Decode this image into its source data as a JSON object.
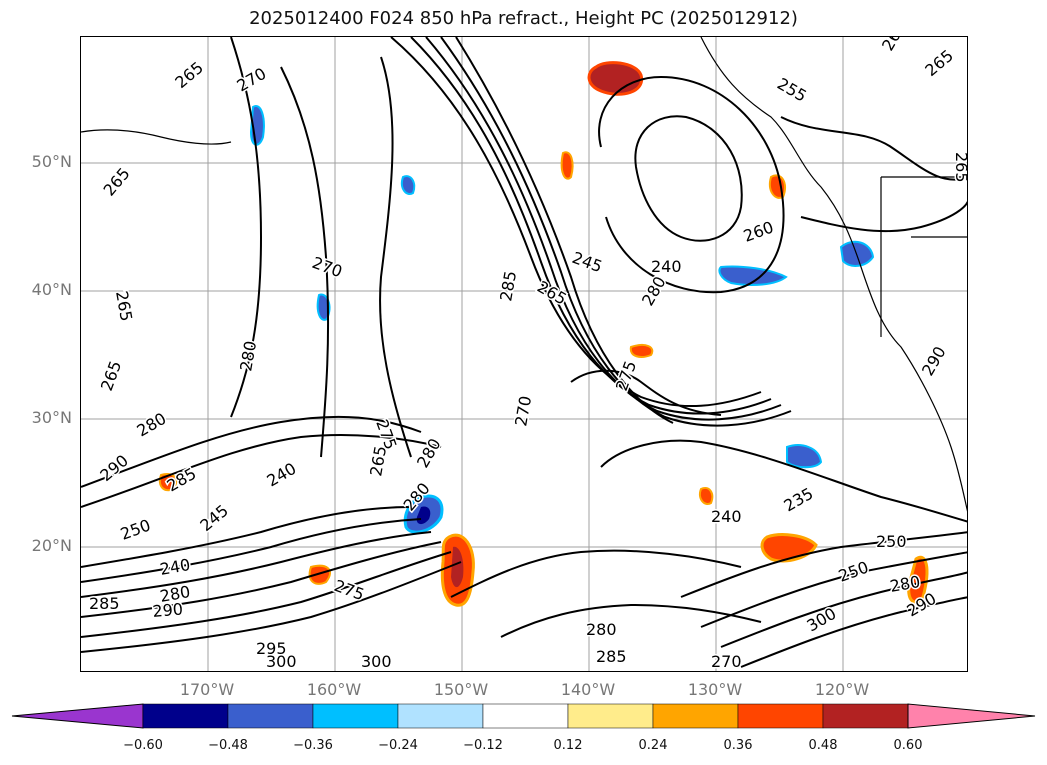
{
  "title": "2025012400 F024 850 hPa refract., Height PC (2025012912)",
  "axes": {
    "lat_ticks": [
      "50°N",
      "40°N",
      "30°N",
      "20°N"
    ],
    "lon_ticks": [
      "170°W",
      "160°W",
      "150°W",
      "140°W",
      "130°W",
      "120°W"
    ]
  },
  "colorbar": {
    "levels": [
      "−0.60",
      "−0.48",
      "−0.36",
      "−0.24",
      "−0.12",
      "0.12",
      "0.24",
      "0.36",
      "0.48",
      "0.60"
    ],
    "colors": [
      "#9a35cf",
      "#00008b",
      "#3a5fcd",
      "#00bfff",
      "#b0e2ff",
      "#ffffff",
      "#ffec8b",
      "#ffa500",
      "#ff4500",
      "#b22222",
      "#ff82ab"
    ]
  },
  "contour_labels": [
    "265",
    "270",
    "265",
    "265",
    "265",
    "270",
    "280",
    "280",
    "290",
    "285",
    "240",
    "245",
    "250",
    "240",
    "280",
    "290",
    "285",
    "275",
    "265",
    "280",
    "275",
    "280",
    "270",
    "285",
    "265",
    "245",
    "240",
    "260",
    "255",
    "260",
    "265",
    "250",
    "240",
    "235",
    "250",
    "280",
    "290",
    "300",
    "285",
    "280",
    "300",
    "300",
    "295",
    "270",
    "265",
    "275",
    "280",
    "290"
  ],
  "palette": {
    "contour": "#000000",
    "grid": "#9a9a9a",
    "land": "#000000"
  }
}
